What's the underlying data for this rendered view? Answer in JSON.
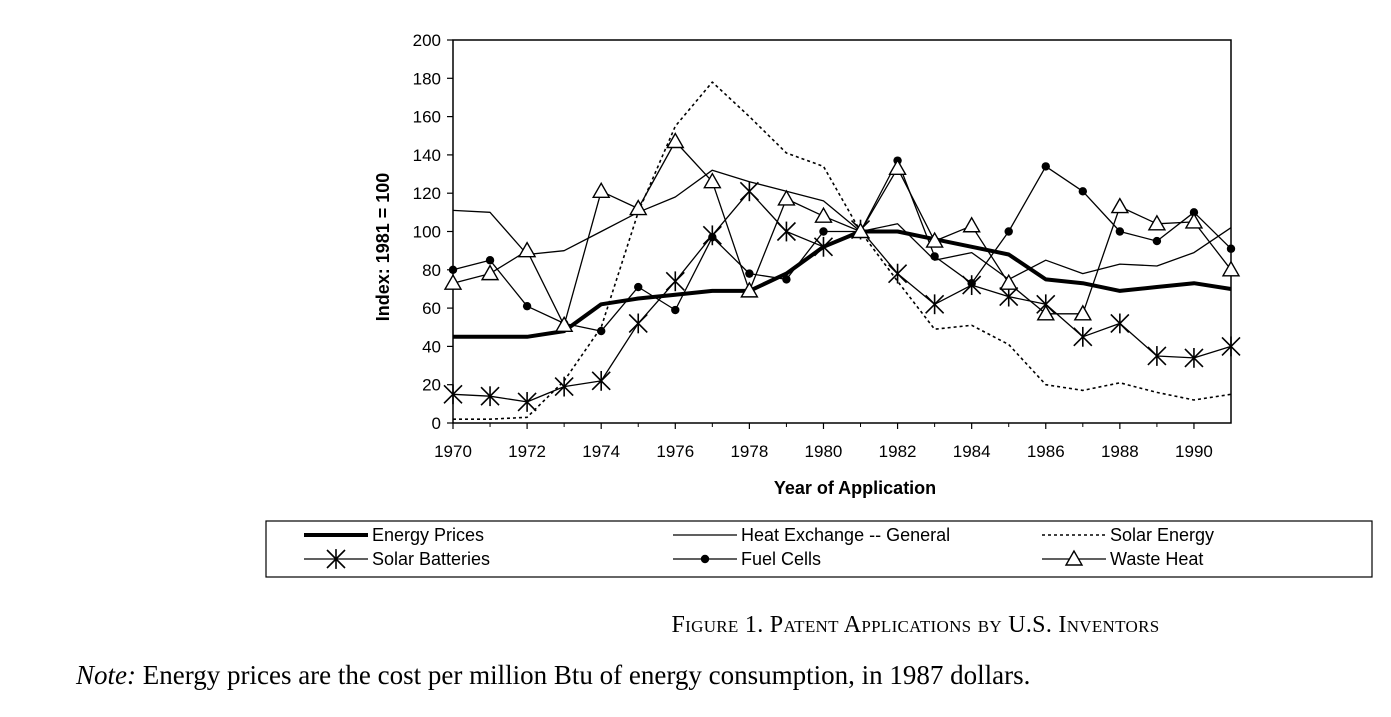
{
  "chart_data": {
    "type": "line",
    "xlabel": "Year of Application",
    "ylabel": "Index: 1981 = 100",
    "xlim": [
      1970,
      1991
    ],
    "ylim": [
      0,
      200
    ],
    "x_ticks": [
      "1970",
      "1972",
      "1974",
      "1976",
      "1978",
      "1980",
      "1982",
      "1984",
      "1986",
      "1988",
      "1990"
    ],
    "y_ticks": [
      "0",
      "20",
      "40",
      "60",
      "80",
      "100",
      "120",
      "140",
      "160",
      "180",
      "200"
    ],
    "grid": false,
    "legend_position": "bottom",
    "x": [
      1970,
      1971,
      1972,
      1973,
      1974,
      1975,
      1976,
      1977,
      1978,
      1979,
      1980,
      1981,
      1982,
      1983,
      1984,
      1985,
      1986,
      1987,
      1988,
      1989,
      1990,
      1991
    ],
    "series": [
      {
        "name": "Energy Prices",
        "style": "thick",
        "marker": "none",
        "values": [
          45,
          45,
          45,
          48,
          62,
          65,
          67,
          69,
          69,
          78,
          92,
          100,
          100,
          96,
          92,
          88,
          75,
          73,
          69,
          71,
          73,
          70
        ]
      },
      {
        "name": "Heat Exchange -- General",
        "style": "solid",
        "marker": "none",
        "values": [
          111,
          110,
          88,
          90,
          100,
          110,
          118,
          132,
          126,
          121,
          116,
          100,
          104,
          85,
          89,
          75,
          85,
          78,
          83,
          82,
          89,
          102
        ]
      },
      {
        "name": "Solar Energy",
        "style": "dotted",
        "marker": "none",
        "values": [
          2,
          2,
          3,
          22,
          50,
          110,
          155,
          178,
          160,
          141,
          134,
          100,
          74,
          49,
          51,
          41,
          20,
          17,
          21,
          16,
          12,
          15
        ]
      },
      {
        "name": "Solar Batteries",
        "style": "solid",
        "marker": "asterisk",
        "values": [
          15,
          14,
          11,
          19,
          22,
          52,
          74,
          98,
          121,
          100,
          92,
          101,
          78,
          62,
          72,
          66,
          62,
          45,
          52,
          35,
          34,
          40
        ]
      },
      {
        "name": "Fuel Cells",
        "style": "solid",
        "marker": "dot",
        "values": [
          80,
          85,
          61,
          52,
          48,
          71,
          59,
          97,
          78,
          75,
          100,
          100,
          137,
          87,
          73,
          100,
          134,
          121,
          100,
          95,
          110,
          91
        ]
      },
      {
        "name": "Waste Heat",
        "style": "solid",
        "marker": "triangle",
        "values": [
          73,
          78,
          90,
          51,
          121,
          112,
          147,
          126,
          69,
          117,
          108,
          100,
          133,
          95,
          103,
          73,
          57,
          57,
          113,
          104,
          105,
          80
        ]
      }
    ]
  },
  "caption": "Figure 1. Patent Applications by U.S. Inventors",
  "note_label": "Note:",
  "note_text": " Energy prices are the cost per million Btu of energy consumption, in 1987 dollars."
}
